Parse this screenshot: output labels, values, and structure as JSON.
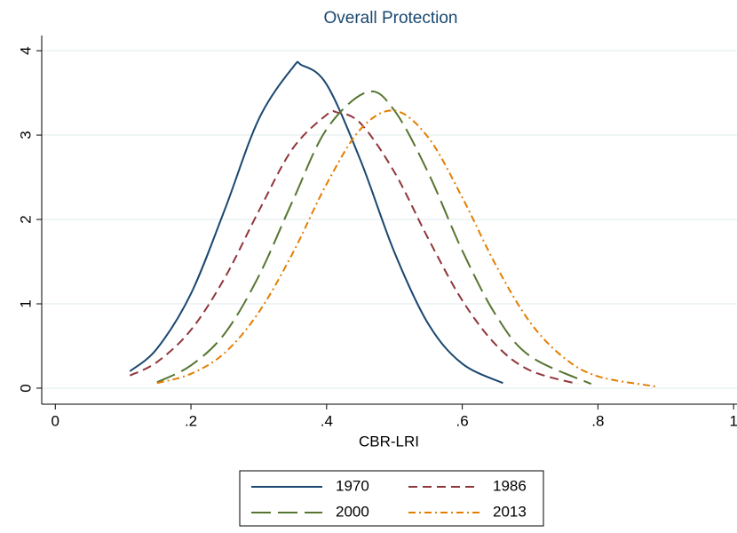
{
  "chart_data": {
    "type": "line",
    "title": "Overall Protection",
    "x_label": "CBR-LRI",
    "xlim": [
      -0.02,
      1.005
    ],
    "ylim": [
      -0.19,
      4.18
    ],
    "xticks": [
      0,
      {
        "value": 0.2,
        "label": ".2"
      },
      {
        "value": 0.4,
        "label": ".4"
      },
      {
        "value": 0.6,
        "label": ".6"
      },
      {
        "value": 0.8,
        "label": ".8"
      },
      1
    ],
    "yticks": [
      0,
      1,
      2,
      3,
      4
    ],
    "grid": true,
    "series": [
      {
        "name": "1970",
        "color": "#1a476f",
        "dash": "solid",
        "x": [
          0.11,
          0.15,
          0.2,
          0.25,
          0.3,
          0.35,
          0.363,
          0.4,
          0.45,
          0.5,
          0.55,
          0.6,
          0.66
        ],
        "values": [
          0.2,
          0.47,
          1.12,
          2.12,
          3.19,
          3.8,
          3.83,
          3.6,
          2.7,
          1.61,
          0.76,
          0.29,
          0.06
        ]
      },
      {
        "name": "1986",
        "color": "#90353b",
        "dash": "dash",
        "x": [
          0.11,
          0.15,
          0.2,
          0.25,
          0.3,
          0.35,
          0.4,
          0.415,
          0.45,
          0.5,
          0.55,
          0.6,
          0.65,
          0.7,
          0.77
        ],
        "values": [
          0.15,
          0.31,
          0.69,
          1.31,
          2.1,
          2.84,
          3.24,
          3.27,
          3.14,
          2.56,
          1.77,
          1.04,
          0.51,
          0.21,
          0.05
        ]
      },
      {
        "name": "2000",
        "color": "#55752f",
        "dash": "longdash",
        "x": [
          0.15,
          0.2,
          0.25,
          0.3,
          0.35,
          0.4,
          0.46,
          0.5,
          0.55,
          0.6,
          0.65,
          0.7,
          0.79
        ],
        "values": [
          0.07,
          0.27,
          0.65,
          1.33,
          2.22,
          3.07,
          3.51,
          3.29,
          2.55,
          1.63,
          0.86,
          0.38,
          0.05
        ]
      },
      {
        "name": "2013",
        "color": "#e37e00",
        "dash": "dashdot",
        "x": [
          0.15,
          0.2,
          0.25,
          0.3,
          0.35,
          0.4,
          0.45,
          0.5,
          0.55,
          0.6,
          0.65,
          0.7,
          0.75,
          0.8,
          0.885
        ],
        "values": [
          0.06,
          0.17,
          0.42,
          0.9,
          1.6,
          2.42,
          3.07,
          3.29,
          2.97,
          2.26,
          1.45,
          0.78,
          0.36,
          0.14,
          0.02
        ]
      }
    ]
  }
}
